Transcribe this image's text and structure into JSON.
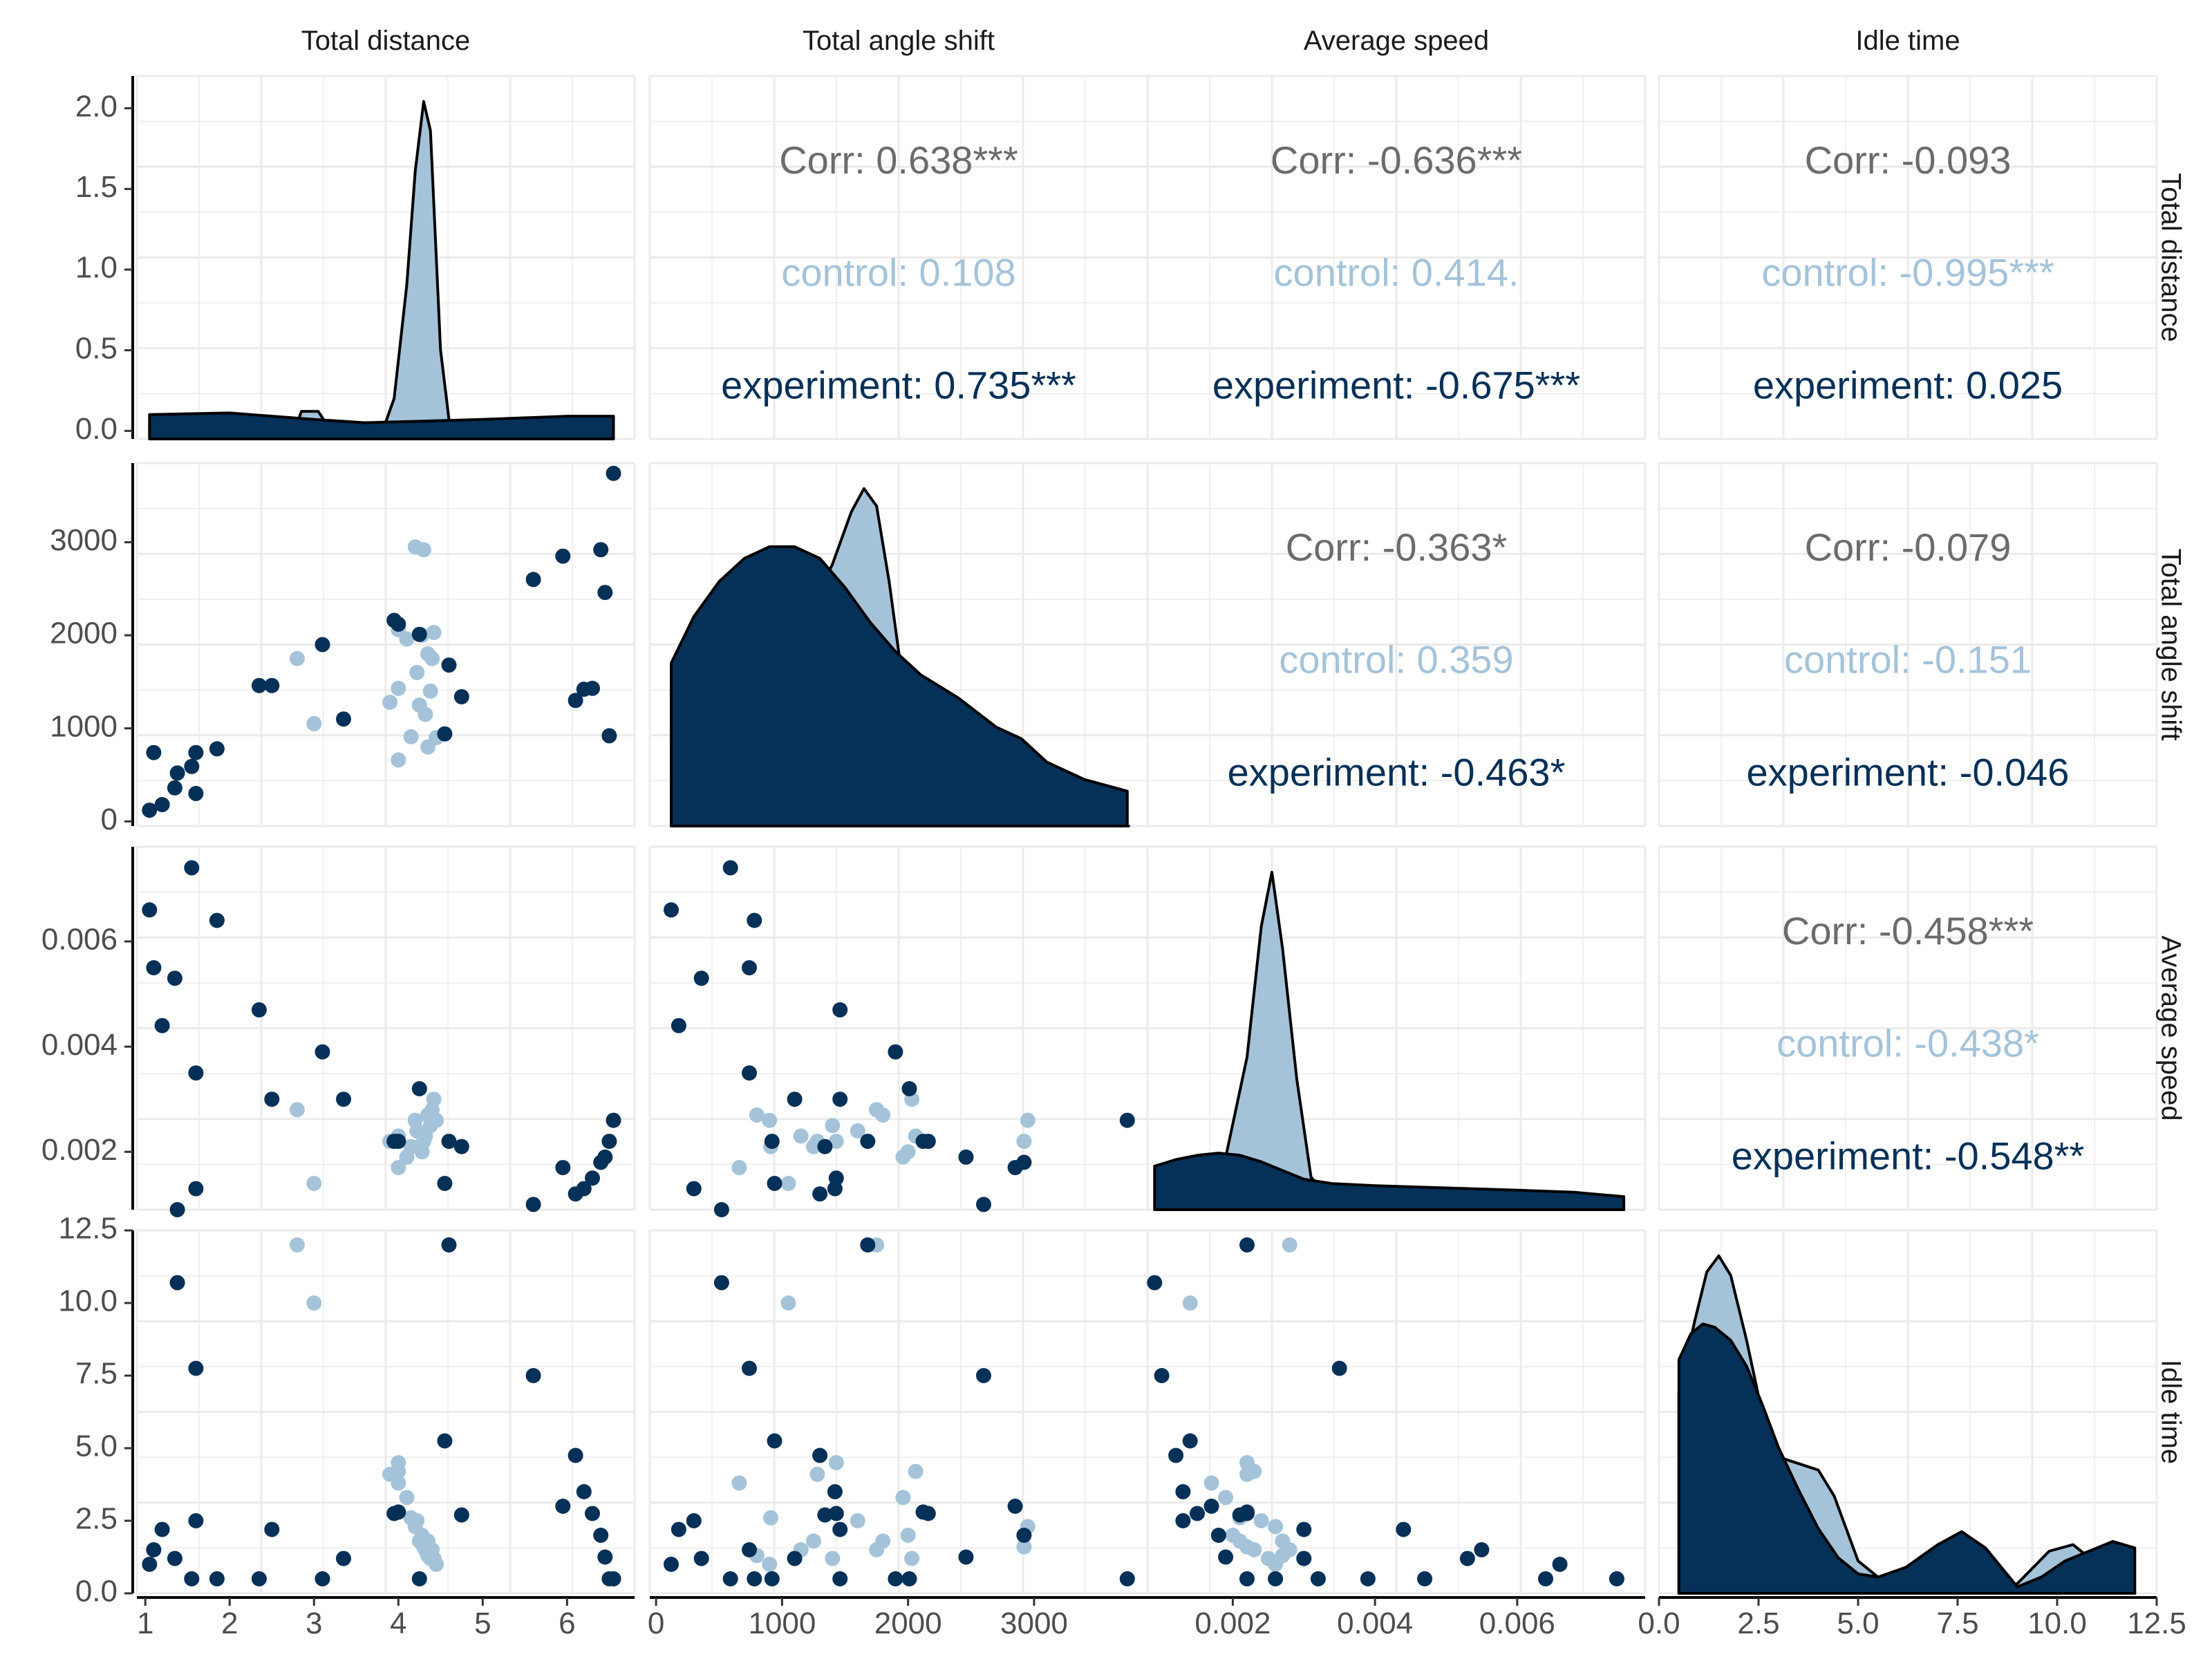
{
  "chart_data": {
    "type": "scatter",
    "chart_kind": "pairs-matrix",
    "variables": [
      "Total distance",
      "Total angle shift",
      "Average speed",
      "Idle time"
    ],
    "groups": [
      {
        "name": "control",
        "color": "#a4c3d9"
      },
      {
        "name": "experiment",
        "color": "#053057"
      }
    ],
    "axes": {
      "x": [
        {
          "range": [
            0.9,
            6.8
          ],
          "ticks": [
            "1",
            "2",
            "3",
            "4",
            "5",
            "6"
          ],
          "tick_values": [
            1,
            2,
            3,
            4,
            5,
            6
          ]
        },
        {
          "range": [
            -50,
            3900
          ],
          "ticks": [
            "0",
            "1000",
            "2000",
            "3000"
          ],
          "tick_values": [
            0,
            1000,
            2000,
            3000
          ]
        },
        {
          "range": [
            0.0008,
            0.0078
          ],
          "ticks": [
            "0.002",
            "0.004",
            "0.006"
          ],
          "tick_values": [
            0.002,
            0.004,
            0.006
          ]
        },
        {
          "range": [
            0,
            12.5
          ],
          "ticks": [
            "0.0",
            "2.5",
            "5.0",
            "7.5",
            "10.0",
            "12.5"
          ],
          "tick_values": [
            0,
            2.5,
            5,
            7.5,
            10,
            12.5
          ]
        }
      ],
      "y": [
        {
          "range": [
            -0.05,
            2.2
          ],
          "ticks": [
            "0.0",
            "0.5",
            "1.0",
            "1.5",
            "2.0"
          ],
          "tick_values": [
            0,
            0.5,
            1,
            1.5,
            2
          ]
        },
        {
          "range": [
            -50,
            3850
          ],
          "ticks": [
            "0",
            "1000",
            "2000",
            "3000"
          ],
          "tick_values": [
            0,
            1000,
            2000,
            3000
          ]
        },
        {
          "range": [
            0.0009,
            0.0078
          ],
          "ticks": [
            "0.002",
            "0.004",
            "0.006"
          ],
          "tick_values": [
            0.002,
            0.004,
            0.006
          ]
        },
        {
          "range": [
            0,
            12.5
          ],
          "ticks": [
            "0.0",
            "2.5",
            "5.0",
            "7.5",
            "10.0",
            "12.5"
          ],
          "tick_values": [
            0,
            2.5,
            5,
            7.5,
            10,
            12.5
          ]
        }
      ]
    },
    "correlations": {
      "0-1": {
        "corr": "Corr: 0.638***",
        "control": "control: 0.108",
        "experiment": "experiment: 0.735***"
      },
      "0-2": {
        "corr": "Corr: -0.636***",
        "control": "control: 0.414.",
        "experiment": "experiment: -0.675***"
      },
      "0-3": {
        "corr": "Corr: -0.093",
        "control": "control: -0.995***",
        "experiment": "experiment: 0.025"
      },
      "1-2": {
        "corr": "Corr: -0.363*",
        "control": "control: 0.359",
        "experiment": "experiment: -0.463*"
      },
      "1-3": {
        "corr": "Corr: -0.079",
        "control": "control: -0.151",
        "experiment": "experiment: -0.046"
      },
      "2-3": {
        "corr": "Corr: -0.458***",
        "control": "control: -0.438*",
        "experiment": "experiment: -0.548**"
      }
    },
    "points": {
      "control": [
        [
          2.8,
          1750,
          0.0028,
          12.0
        ],
        [
          3.0,
          1050,
          0.0014,
          10.0
        ],
        [
          3.9,
          1280,
          0.0022,
          4.1
        ],
        [
          4.0,
          1430,
          0.0022,
          4.5
        ],
        [
          4.0,
          660,
          0.0017,
          3.8
        ],
        [
          4.0,
          2060,
          0.0023,
          4.2
        ],
        [
          4.1,
          1960,
          0.0019,
          3.3
        ],
        [
          4.15,
          910,
          0.0021,
          2.6
        ],
        [
          4.2,
          2950,
          0.0026,
          2.3
        ],
        [
          4.22,
          1600,
          0.0024,
          2.5
        ],
        [
          4.25,
          1250,
          0.0021,
          1.8
        ],
        [
          4.28,
          2000,
          0.002,
          2.0
        ],
        [
          4.3,
          2920,
          0.0022,
          1.6
        ],
        [
          4.32,
          1150,
          0.0023,
          1.5
        ],
        [
          4.35,
          800,
          0.0027,
          1.3
        ],
        [
          4.35,
          1800,
          0.0027,
          1.8
        ],
        [
          4.38,
          1400,
          0.0025,
          1.2
        ],
        [
          4.4,
          1750,
          0.0028,
          1.5
        ],
        [
          4.42,
          2030,
          0.003,
          1.2
        ],
        [
          4.45,
          900,
          0.0026,
          1.0
        ]
      ],
      "experiment": [
        [
          1.05,
          120,
          0.0066,
          1.0
        ],
        [
          1.1,
          740,
          0.0055,
          1.5
        ],
        [
          1.2,
          180,
          0.0044,
          2.2
        ],
        [
          1.35,
          360,
          0.0053,
          1.2
        ],
        [
          1.38,
          520,
          0.0009,
          10.7
        ],
        [
          1.55,
          590,
          0.0074,
          0.5
        ],
        [
          1.6,
          740,
          0.0035,
          7.75
        ],
        [
          1.6,
          300,
          0.0013,
          2.5
        ],
        [
          1.85,
          780,
          0.0064,
          0.5
        ],
        [
          2.35,
          1460,
          0.0047,
          0.5
        ],
        [
          2.5,
          1460,
          0.003,
          2.2
        ],
        [
          3.1,
          1900,
          0.0039,
          0.5
        ],
        [
          3.35,
          1100,
          0.003,
          1.2
        ],
        [
          3.95,
          2160,
          0.0022,
          2.75
        ],
        [
          4.0,
          2120,
          0.0022,
          2.8
        ],
        [
          4.25,
          2010,
          0.0032,
          0.5
        ],
        [
          4.55,
          940,
          0.0014,
          5.25
        ],
        [
          4.6,
          1680,
          0.0022,
          12.0
        ],
        [
          4.75,
          1340,
          0.0021,
          2.7
        ],
        [
          5.6,
          2600,
          0.001,
          7.5
        ],
        [
          5.95,
          2850,
          0.0017,
          3.0
        ],
        [
          6.1,
          1300,
          0.0012,
          4.75
        ],
        [
          6.2,
          1420,
          0.0013,
          3.5
        ],
        [
          6.3,
          1430,
          0.0015,
          2.75
        ],
        [
          6.4,
          2920,
          0.0018,
          2.0
        ],
        [
          6.45,
          2460,
          0.0019,
          1.25
        ],
        [
          6.5,
          920,
          0.0022,
          0.5
        ],
        [
          6.55,
          3740,
          0.0026,
          0.5
        ]
      ]
    },
    "density": {
      "control": [
        {
          "x": [
            1.1,
            2.5,
            2.75,
            2.85,
            3.05,
            3.2,
            3.4,
            3.8,
            3.95,
            4.1,
            4.2,
            4.3,
            4.38,
            4.5,
            4.6,
            4.8,
            5.4,
            6.5
          ],
          "y": [
            0,
            0,
            0.02,
            0.17,
            0.17,
            0.05,
            0.01,
            0.03,
            0.25,
            0.95,
            1.65,
            2.08,
            1.9,
            0.55,
            0.12,
            0.02,
            0,
            0
          ]
        },
        {
          "x": [
            130,
            400,
            700,
            1000,
            1200,
            1400,
            1550,
            1650,
            1750,
            1850,
            1950,
            2150,
            2500,
            2900,
            3100,
            3300,
            3750
          ],
          "y": [
            0,
            4e-05,
            0.00012,
            0.00026,
            0.00036,
            0.00045,
            0.00054,
            0.00058,
            0.00055,
            0.00042,
            0.00026,
            0.00012,
            6e-05,
            9e-05,
            5e-05,
            1e-05,
            0
          ]
        },
        {
          "x": [
            0.0009,
            0.00145,
            0.0016,
            0.0017,
            0.0019,
            0.0022,
            0.0024,
            0.00255,
            0.0027,
            0.0029,
            0.0031,
            0.0034,
            0.004,
            0.0075
          ],
          "y": [
            0,
            0.02,
            0.2,
            0.18,
            0.24,
            0.7,
            1.3,
            1.55,
            1.2,
            0.6,
            0.15,
            0.03,
            0,
            0
          ]
        },
        {
          "x": [
            0.5,
            0.9,
            1.2,
            1.5,
            1.8,
            2.2,
            2.6,
            3.0,
            3.5,
            4.0,
            4.4,
            5.0,
            5.8,
            6.8,
            8.0,
            9.0,
            9.8,
            10.4,
            11.2,
            11.95
          ],
          "y": [
            0.62,
            0.84,
            0.99,
            1.04,
            0.98,
            0.78,
            0.55,
            0.42,
            0.4,
            0.38,
            0.3,
            0.1,
            0.02,
            0,
            0,
            0.03,
            0.13,
            0.15,
            0.07,
            0
          ]
        }
      ],
      "experiment": [
        {
          "x": [
            1.05,
            2.0,
            3.0,
            3.6,
            4.3,
            5.0,
            6.0,
            6.55
          ],
          "y": [
            0.15,
            0.16,
            0.12,
            0.1,
            0.11,
            0.12,
            0.14,
            0.14
          ]
        },
        {
          "x": [
            120,
            300,
            500,
            700,
            900,
            1100,
            1300,
            1500,
            1700,
            1900,
            2100,
            2400,
            2700,
            2900,
            3100,
            3400,
            3740
          ],
          "y": [
            0.00028,
            0.00036,
            0.00042,
            0.00046,
            0.00048,
            0.00048,
            0.00046,
            0.00041,
            0.00035,
            0.0003,
            0.00026,
            0.00022,
            0.00017,
            0.00015,
            0.00011,
            8e-05,
            6e-05
          ]
        },
        {
          "x": [
            0.0009,
            0.0012,
            0.0015,
            0.0018,
            0.0021,
            0.0024,
            0.0027,
            0.003,
            0.0034,
            0.004,
            0.005,
            0.006,
            0.0068,
            0.0075
          ],
          "y": [
            0.2,
            0.23,
            0.25,
            0.26,
            0.25,
            0.22,
            0.18,
            0.14,
            0.12,
            0.11,
            0.1,
            0.09,
            0.08,
            0.06
          ]
        },
        {
          "x": [
            0.5,
            0.8,
            1.1,
            1.4,
            1.8,
            2.2,
            2.6,
            3.0,
            3.5,
            4.0,
            4.5,
            5.0,
            5.5,
            6.2,
            7.0,
            7.6,
            8.2,
            9.0,
            9.6,
            10.2,
            10.8,
            11.4,
            11.95
          ],
          "y": [
            0.72,
            0.8,
            0.83,
            0.82,
            0.78,
            0.7,
            0.58,
            0.45,
            0.32,
            0.2,
            0.11,
            0.06,
            0.05,
            0.08,
            0.15,
            0.19,
            0.14,
            0.02,
            0.05,
            0.1,
            0.13,
            0.16,
            0.14
          ]
        }
      ]
    }
  }
}
